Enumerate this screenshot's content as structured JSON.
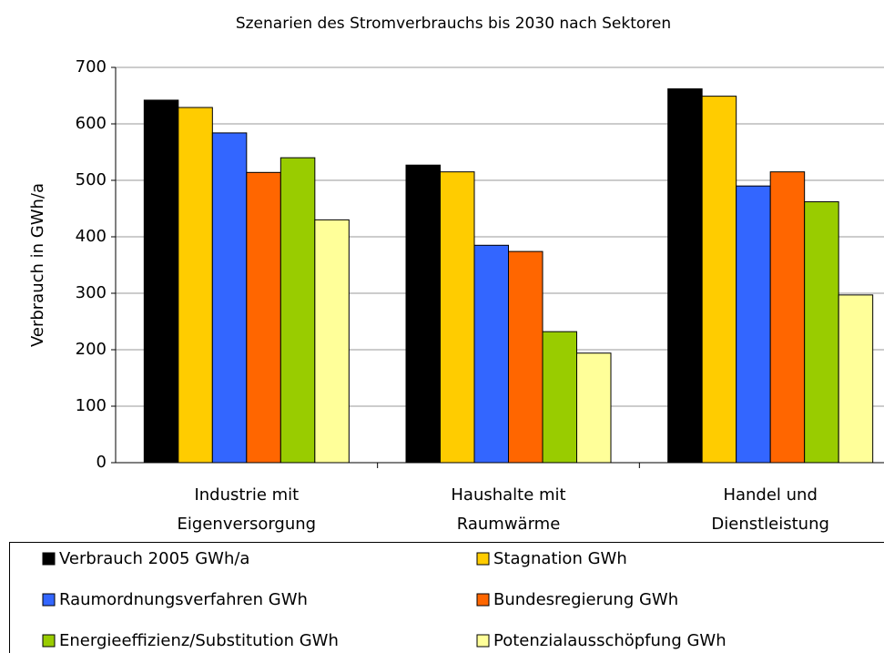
{
  "chart_data": {
    "type": "bar",
    "title": "Szenarien des Stromverbrauchs bis 2030 nach Sektoren",
    "y_label": "Verbrauch in GWh/a",
    "categories": [
      "Industrie mit\nEigenversorgung",
      "Haushalte mit\nRaumwärme",
      "Handel und\nDienstleistung"
    ],
    "series": [
      {
        "name": "Verbrauch 2005 GWh/a",
        "color": "#000000",
        "values": [
          642,
          527,
          662
        ]
      },
      {
        "name": "Stagnation GWh",
        "color": "#ffcc00",
        "values": [
          629,
          515,
          649
        ]
      },
      {
        "name": "Raumordnungsverfahren GWh",
        "color": "#3366ff",
        "values": [
          584,
          385,
          490
        ]
      },
      {
        "name": "Bundesregierung GWh",
        "color": "#ff6600",
        "values": [
          514,
          374,
          515
        ]
      },
      {
        "name": "Energieeffizienz/Substitution GWh",
        "color": "#99cc00",
        "values": [
          540,
          232,
          462
        ]
      },
      {
        "name": "Potenzialausschöpfung GWh",
        "color": "#ffff99",
        "values": [
          430,
          194,
          297
        ]
      }
    ],
    "ylim": [
      0,
      700
    ],
    "yticks": [
      0,
      100,
      200,
      300,
      400,
      500,
      600,
      700
    ],
    "grid": true,
    "legend": "bottom"
  }
}
